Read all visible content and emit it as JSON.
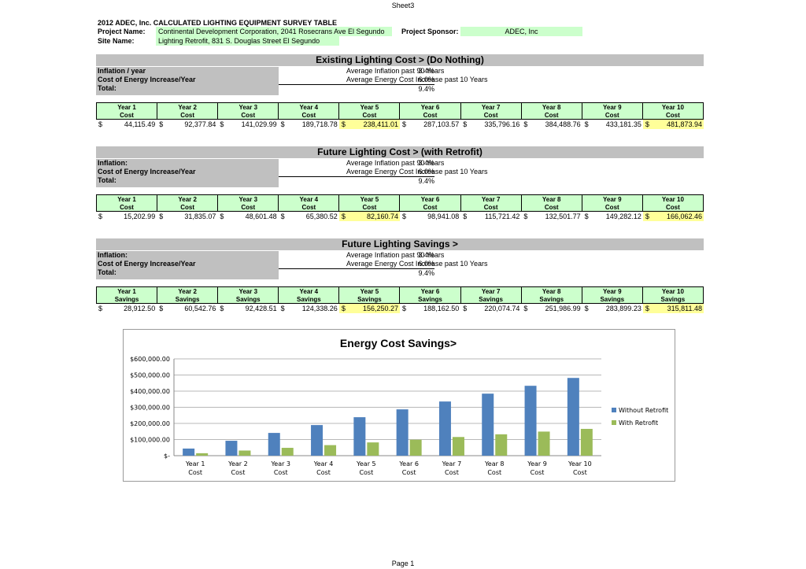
{
  "sheet_name": "Sheet3",
  "page_label": "Page 1",
  "title": "2012 ADEC, Inc. CALCULATED LIGHTING EQUIPMENT SURVEY TABLE",
  "project": {
    "project_name_label": "Project Name:",
    "project_name": "Continental Development Corporation, 2041 Rosecrans Ave El Segundo",
    "site_name_label": "Site Name:",
    "site_name": "Lighting Retrofit, 831 S. Douglas Street El Segundo",
    "sponsor_label": "Project Sponsor:",
    "sponsor": "ADEC, Inc"
  },
  "currency_symbol": "$",
  "sections": [
    {
      "header": "Existing Lighting Cost >      (Do Nothing)",
      "params": [
        {
          "label": "Inflation / year",
          "value": "3.4%",
          "desc": "Average Inflation past 90 Years"
        },
        {
          "label": "Cost of Energy Increase/Year",
          "value": "6.0%",
          "desc": "Average Energy Cost Increase past 10 Years"
        },
        {
          "label": "Total:",
          "value": "9.4%",
          "desc": ""
        }
      ],
      "columns": [
        {
          "year": "Year 1",
          "sub": "Cost"
        },
        {
          "year": "Year 2",
          "sub": "Cost"
        },
        {
          "year": "Year 3",
          "sub": "Cost"
        },
        {
          "year": "Year 4",
          "sub": "Cost"
        },
        {
          "year": "Year 5",
          "sub": "Cost"
        },
        {
          "year": "Year 6",
          "sub": "Cost"
        },
        {
          "year": "Year 7",
          "sub": "Cost"
        },
        {
          "year": "Year 8",
          "sub": "Cost"
        },
        {
          "year": "Year 9",
          "sub": "Cost"
        },
        {
          "year": "Year 10",
          "sub": "Cost"
        }
      ],
      "values": [
        "44,115.49",
        "92,377.84",
        "141,029.99",
        "189,718.78",
        "238,411.01",
        "287,103.57",
        "335,796.16",
        "384,488.76",
        "433,181.35",
        "481,873.94"
      ],
      "highlight": [
        4,
        9
      ]
    },
    {
      "header": "Future Lighting Cost >      (with Retrofit)",
      "params": [
        {
          "label": "Inflation:",
          "value": "3.4%",
          "desc": "Average Inflation past 90 Years"
        },
        {
          "label": "Cost of Energy Increase/Year",
          "value": "6.0%",
          "desc": "Average Energy Cost Increase past 10 Years"
        },
        {
          "label": "Total:",
          "value": "9.4%",
          "desc": ""
        }
      ],
      "columns": [
        {
          "year": "Year 1",
          "sub": "Cost"
        },
        {
          "year": "Year 2",
          "sub": "Cost"
        },
        {
          "year": "Year 3",
          "sub": "Cost"
        },
        {
          "year": "Year 4",
          "sub": "Cost"
        },
        {
          "year": "Year 5",
          "sub": "Cost"
        },
        {
          "year": "Year 6",
          "sub": "Cost"
        },
        {
          "year": "Year 7",
          "sub": "Cost"
        },
        {
          "year": "Year 8",
          "sub": "Cost"
        },
        {
          "year": "Year 9",
          "sub": "Cost"
        },
        {
          "year": "Year 10",
          "sub": "Cost"
        }
      ],
      "values": [
        "15,202.99",
        "31,835.07",
        "48,601.48",
        "65,380.52",
        "82,160.74",
        "98,941.08",
        "115,721.42",
        "132,501.77",
        "149,282.12",
        "166,062.46"
      ],
      "highlight": [
        4,
        9
      ]
    },
    {
      "header": "Future Lighting Savings >",
      "params": [
        {
          "label": "Inflation:",
          "value": "3.4%",
          "desc": "Average Inflation past 90 Years"
        },
        {
          "label": "Cost of Energy Increase/Year",
          "value": "6.0%",
          "desc": "Average Energy Cost Increase past 10 Years"
        },
        {
          "label": "Total:",
          "value": "9.4%",
          "desc": ""
        }
      ],
      "columns": [
        {
          "year": "Year 1",
          "sub": "Savings"
        },
        {
          "year": "Year 2",
          "sub": "Savings"
        },
        {
          "year": "Year 3",
          "sub": "Savings"
        },
        {
          "year": "Year 4",
          "sub": "Savings"
        },
        {
          "year": "Year 5",
          "sub": "Savings"
        },
        {
          "year": "Year 6",
          "sub": "Savings"
        },
        {
          "year": "Year 7",
          "sub": "Savings"
        },
        {
          "year": "Year 8",
          "sub": "Savings"
        },
        {
          "year": "Year 9",
          "sub": "Savings"
        },
        {
          "year": "Year 10",
          "sub": "Savings"
        }
      ],
      "values": [
        "28,912.50",
        "60,542.76",
        "92,428.51",
        "124,338.26",
        "156,250.27",
        "188,162.50",
        "220,074.74",
        "251,986.99",
        "283,899.23",
        "315,811.48"
      ],
      "highlight": [
        4,
        9
      ]
    }
  ],
  "chart_data": {
    "type": "bar",
    "title": "Energy Cost Savings>",
    "categories": [
      [
        "Year 1",
        "Cost"
      ],
      [
        "Year 2",
        "Cost"
      ],
      [
        "Year 3",
        "Cost"
      ],
      [
        "Year 4",
        "Cost"
      ],
      [
        "Year 5",
        "Cost"
      ],
      [
        "Year 6",
        "Cost"
      ],
      [
        "Year 7",
        "Cost"
      ],
      [
        "Year 8",
        "Cost"
      ],
      [
        "Year 9",
        "Cost"
      ],
      [
        "Year 10",
        "Cost"
      ]
    ],
    "series": [
      {
        "name": "Without Retrofit",
        "color": "#4f81bd",
        "values": [
          44115.49,
          92377.84,
          141029.99,
          189718.78,
          238411.01,
          287103.57,
          335796.16,
          384488.76,
          433181.35,
          481873.94
        ]
      },
      {
        "name": "With Retrofit",
        "color": "#9bbb59",
        "values": [
          15202.99,
          31835.07,
          48601.48,
          65380.52,
          82160.74,
          98941.08,
          115721.42,
          132501.77,
          149282.12,
          166062.46
        ]
      }
    ],
    "ylim": [
      0,
      600000
    ],
    "yticks": [
      0,
      100000,
      200000,
      300000,
      400000,
      500000,
      600000
    ],
    "ytick_labels": [
      "$-",
      "$100,000.00",
      "$200,000.00",
      "$300,000.00",
      "$400,000.00",
      "$500,000.00",
      "$600,000.00"
    ],
    "grid": true,
    "legend": "right"
  },
  "colors": {
    "label_green": "#ccffcc",
    "highlight_yellow": "#ffff99",
    "section_gray": "#c0c0c0"
  }
}
